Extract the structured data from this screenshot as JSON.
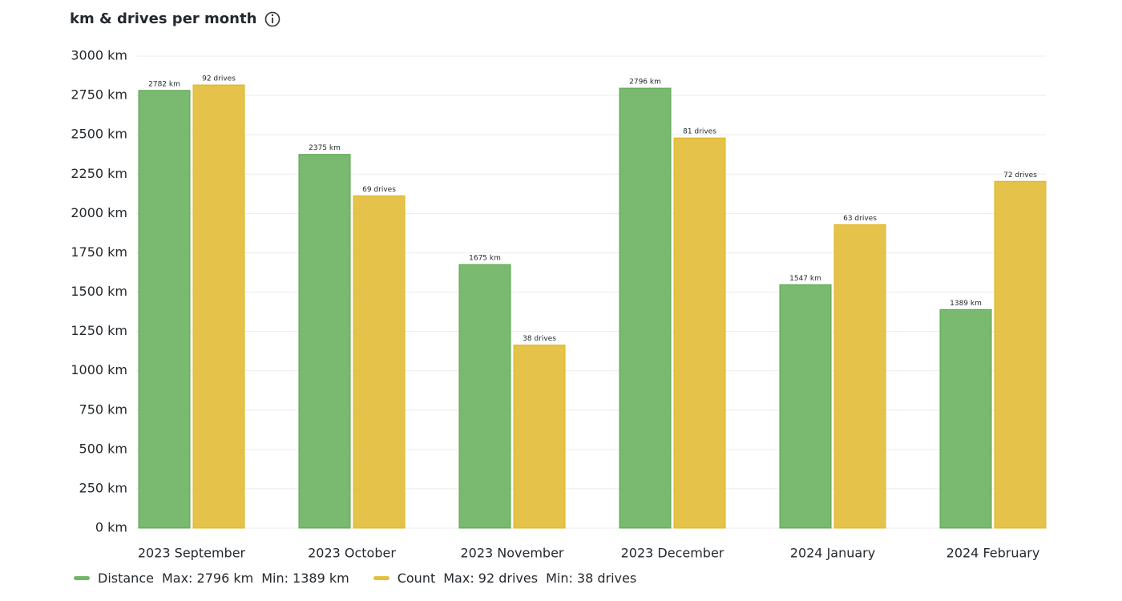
{
  "chart_data": {
    "type": "bar",
    "title": "km & drives per month",
    "categories": [
      "2023 September",
      "2023 October",
      "2023 November",
      "2023 December",
      "2024 January",
      "2024 February"
    ],
    "series": [
      {
        "name": "Distance",
        "color": "#73b568",
        "values": [
          2782,
          2375,
          1675,
          2796,
          1547,
          1389
        ],
        "value_labels": [
          "2782 km",
          "2375 km",
          "1675 km",
          "2796 km",
          "1547 km",
          "1389 km"
        ],
        "legend_stats": [
          {
            "value": 2796,
            "label": "Max: 2796 km"
          },
          {
            "value": 1389,
            "label": "Min: 1389 km"
          }
        ]
      },
      {
        "name": "Count",
        "color": "#e4bf3f",
        "axis": "y2",
        "values": [
          92,
          69,
          38,
          81,
          63,
          72
        ],
        "value_labels": [
          "92 drives",
          "69 drives",
          "38 drives",
          "81 drives",
          "63 drives",
          "72 drives"
        ],
        "legend_stats": [
          {
            "value": 92,
            "label": "Max: 92 drives"
          },
          {
            "value": 38,
            "label": "Min: 38 drives"
          }
        ]
      }
    ],
    "ylim": [
      0,
      3000
    ],
    "yticks": [
      {
        "value": 0,
        "label": "0 km"
      },
      {
        "value": 250,
        "label": "250 km"
      },
      {
        "value": 500,
        "label": "500 km"
      },
      {
        "value": 750,
        "label": "750 km"
      },
      {
        "value": 1000,
        "label": "1000 km"
      },
      {
        "value": 1250,
        "label": "1250 km"
      },
      {
        "value": 1500,
        "label": "1500 km"
      },
      {
        "value": 1750,
        "label": "1750 km"
      },
      {
        "value": 2000,
        "label": "2000 km"
      },
      {
        "value": 2250,
        "label": "2250 km"
      },
      {
        "value": 2500,
        "label": "2500 km"
      },
      {
        "value": 2750,
        "label": "2750 km"
      },
      {
        "value": 3000,
        "label": "3000 km"
      }
    ],
    "y2lim": [
      0,
      98
    ],
    "grid": true
  }
}
